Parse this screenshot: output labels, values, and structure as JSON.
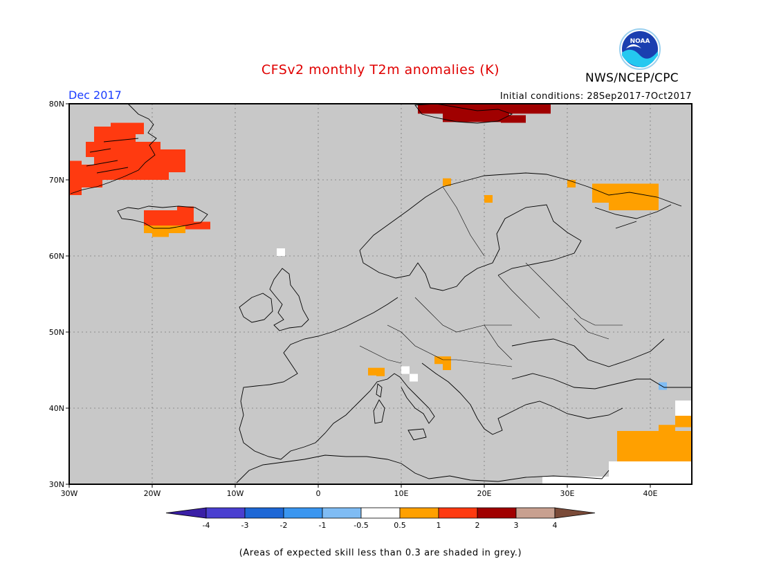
{
  "title": "CFSv2 monthly T2m anomalies (K)",
  "org": "NWS/NCEP/CPC",
  "logo_text": "NOAA",
  "month": "Dec 2017",
  "initial_conditions": "Initial conditions: 28Sep2017-7Oct2017",
  "footnote": "(Areas of expected skill less than 0.3 are shaded in grey.)",
  "map": {
    "lon_range": [
      -30,
      45
    ],
    "lat_range": [
      30,
      80
    ],
    "lat_labels": [
      "30N",
      "40N",
      "50N",
      "60N",
      "70N",
      "80N"
    ],
    "lon_labels": [
      "30W",
      "20W",
      "10W",
      "0",
      "10E",
      "20E",
      "30E",
      "40E"
    ],
    "background_color": "#c8c8c8",
    "grid": true
  },
  "legend": {
    "bins": [
      {
        "color": "#3a1fa6"
      },
      {
        "color": "#4a3fd0"
      },
      {
        "color": "#1d67d6"
      },
      {
        "color": "#3a96f0"
      },
      {
        "color": "#7fbcf4"
      },
      {
        "color": "#ffffff"
      },
      {
        "color": "#ffa000"
      },
      {
        "color": "#ff3a10"
      },
      {
        "color": "#a00000"
      },
      {
        "color": "#c8a090"
      },
      {
        "color": "#7a4a38"
      }
    ],
    "tick_labels": [
      "-4",
      "-3",
      "-2",
      "-1",
      "-0.5",
      "0.5",
      "1",
      "2",
      "3",
      "4"
    ]
  },
  "anomaly_cells": [
    {
      "region": "Greenland east coast",
      "category": "1 to 2 K",
      "color": "#ff3a10"
    },
    {
      "region": "Iceland",
      "category": "1 to 2 K",
      "color": "#ff3a10"
    },
    {
      "region": "Iceland south",
      "category": "0.5 to 1 K",
      "color": "#ffa000"
    },
    {
      "region": "Svalbard",
      "category": "2 to 3 K",
      "color": "#a00000"
    },
    {
      "region": "Kola Peninsula",
      "category": "0.5 to 1 K",
      "color": "#ffa000"
    },
    {
      "region": "Northern Norway / Finland",
      "category": "0.5 to 1 K",
      "color": "#ffa000"
    },
    {
      "region": "Alps",
      "category": "0.5 to 1 K",
      "color": "#ffa000"
    },
    {
      "region": "Eastern Mediterranean",
      "category": "0.5 to 1 K",
      "color": "#ffa000"
    },
    {
      "region": "Caucasus",
      "category": "-1 to -0.5 K",
      "color": "#7fbcf4"
    }
  ]
}
